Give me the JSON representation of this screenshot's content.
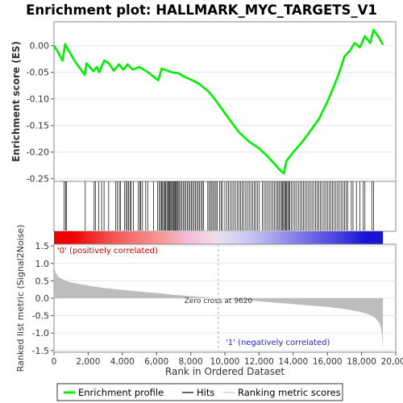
{
  "chart_data": {
    "type": "line",
    "title": "Enrichment plot: HALLMARK_MYC_TARGETS_V1",
    "xlabel": "Rank in Ordered Dataset",
    "top_panel": {
      "ylabel": "Enrichment score (ES)",
      "ylim": [
        -0.255,
        0.045
      ],
      "yticks": [
        0.0,
        -0.05,
        -0.1,
        -0.15,
        -0.2,
        -0.25
      ],
      "ytick_labels": [
        "0.00",
        "-0.05",
        "-0.10",
        "-0.15",
        "-0.20",
        "-0.25"
      ],
      "series_name": "Enrichment profile",
      "color": "#00ee00",
      "points": [
        [
          0,
          0.0
        ],
        [
          250,
          -0.013
        ],
        [
          500,
          -0.028
        ],
        [
          650,
          0.003
        ],
        [
          800,
          -0.006
        ],
        [
          1200,
          -0.028
        ],
        [
          1800,
          -0.055
        ],
        [
          1900,
          -0.033
        ],
        [
          2300,
          -0.048
        ],
        [
          2500,
          -0.04
        ],
        [
          2650,
          -0.05
        ],
        [
          2800,
          -0.038
        ],
        [
          2950,
          -0.028
        ],
        [
          3200,
          -0.033
        ],
        [
          3500,
          -0.047
        ],
        [
          3800,
          -0.035
        ],
        [
          4050,
          -0.045
        ],
        [
          4300,
          -0.035
        ],
        [
          4600,
          -0.045
        ],
        [
          5000,
          -0.04
        ],
        [
          5500,
          -0.05
        ],
        [
          6100,
          -0.065
        ],
        [
          6300,
          -0.043
        ],
        [
          6900,
          -0.05
        ],
        [
          7300,
          -0.052
        ],
        [
          7600,
          -0.058
        ],
        [
          8100,
          -0.065
        ],
        [
          8500,
          -0.072
        ],
        [
          9000,
          -0.085
        ],
        [
          9400,
          -0.1
        ],
        [
          9800,
          -0.118
        ],
        [
          10300,
          -0.14
        ],
        [
          10800,
          -0.162
        ],
        [
          11400,
          -0.18
        ],
        [
          12000,
          -0.193
        ],
        [
          12400,
          -0.205
        ],
        [
          12900,
          -0.222
        ],
        [
          13200,
          -0.233
        ],
        [
          13450,
          -0.24
        ],
        [
          13600,
          -0.217
        ],
        [
          14000,
          -0.2
        ],
        [
          14500,
          -0.182
        ],
        [
          15000,
          -0.16
        ],
        [
          15500,
          -0.138
        ],
        [
          16000,
          -0.105
        ],
        [
          16400,
          -0.075
        ],
        [
          16700,
          -0.05
        ],
        [
          17000,
          -0.02
        ],
        [
          17300,
          -0.01
        ],
        [
          17600,
          0.005
        ],
        [
          17900,
          -0.003
        ],
        [
          18200,
          0.018
        ],
        [
          18500,
          0.005
        ],
        [
          18700,
          0.03
        ],
        [
          19000,
          0.016
        ],
        [
          19250,
          0.002
        ]
      ]
    },
    "hits": [
      590,
      680,
      720,
      1830,
      2350,
      2420,
      2610,
      2790,
      2930,
      3200,
      3620,
      3710,
      3820,
      3890,
      4120,
      4210,
      4290,
      4360,
      4450,
      4520,
      4640,
      4920,
      5020,
      5080,
      5180,
      5370,
      5480,
      5820,
      6070,
      6160,
      6230,
      6300,
      6360,
      6420,
      6480,
      6540,
      6610,
      6660,
      6720,
      6770,
      6830,
      6880,
      6940,
      6990,
      7040,
      7100,
      7150,
      7210,
      7260,
      7320,
      7400,
      7480,
      7560,
      7640,
      7720,
      7800,
      7880,
      7960,
      8040,
      8120,
      8200,
      8280,
      8360,
      8440,
      8520,
      8600,
      8680,
      8760,
      9000,
      9080,
      9160,
      9240,
      9320,
      9400,
      9480,
      9560,
      9700,
      9780,
      9860,
      10000,
      10120,
      10220,
      10320,
      10420,
      10520,
      10620,
      10720,
      10820,
      10920,
      11020,
      11120,
      11220,
      11320,
      11420,
      11520,
      11620,
      11720,
      11820,
      11920,
      12020,
      12200,
      12300,
      12400,
      12500,
      12600,
      12700,
      12800,
      12900,
      13000,
      13080,
      13160,
      13240,
      13320,
      13380,
      13440,
      13500,
      13560,
      13620,
      13680,
      13740,
      13800,
      13900,
      14000,
      14100,
      14200,
      14300,
      14400,
      14500,
      14600,
      14700,
      14800,
      14900,
      15000,
      15100,
      15200,
      15300,
      15400,
      15500,
      15600,
      15700,
      15800,
      15900,
      16000,
      16100,
      16200,
      16300,
      16400,
      16500,
      16600,
      16700,
      16800,
      16900,
      17000,
      17100,
      17200,
      17400,
      17500,
      17700,
      17900,
      18100,
      18200,
      18600,
      18700
    ],
    "bottom_panel": {
      "ylabel": "Ranked list metric (Signal2Noise)",
      "ylim": [
        -1.55,
        1.55
      ],
      "yticks": [
        1.5,
        1.0,
        0.5,
        0.0,
        -0.5,
        -1.0,
        -1.5
      ],
      "ytick_labels": [
        "1.5",
        "1.0",
        "0.5",
        "0.0",
        "-0.5",
        "-1.0",
        "-1.5"
      ],
      "metric_points": [
        [
          0,
          0.95
        ],
        [
          100,
          0.72
        ],
        [
          300,
          0.6
        ],
        [
          600,
          0.52
        ],
        [
          1000,
          0.45
        ],
        [
          2000,
          0.36
        ],
        [
          3000,
          0.29
        ],
        [
          4000,
          0.24
        ],
        [
          5000,
          0.19
        ],
        [
          6000,
          0.15
        ],
        [
          7000,
          0.1
        ],
        [
          8000,
          0.06
        ],
        [
          9000,
          0.02
        ],
        [
          9620,
          0.0
        ],
        [
          10500,
          -0.03
        ],
        [
          12000,
          -0.09
        ],
        [
          13000,
          -0.13
        ],
        [
          14000,
          -0.17
        ],
        [
          15000,
          -0.21
        ],
        [
          16000,
          -0.25
        ],
        [
          17000,
          -0.31
        ],
        [
          17800,
          -0.38
        ],
        [
          18400,
          -0.46
        ],
        [
          18800,
          -0.56
        ],
        [
          19050,
          -0.72
        ],
        [
          19200,
          -1.0
        ],
        [
          19250,
          -1.45
        ]
      ],
      "zero_cross_label": "Zero cross at 9620",
      "zero_cross": 9620,
      "pos_label": "'0' (positively correlated)",
      "neg_label": "'1' (negatively correlated)"
    },
    "xlim": [
      0,
      20000
    ],
    "xticks": [
      0,
      2000,
      4000,
      6000,
      8000,
      10000,
      12000,
      14000,
      16000,
      18000,
      20000
    ],
    "xtick_labels": [
      "0",
      "2,000",
      "4,000",
      "6,000",
      "8,000",
      "10,000",
      "12,000",
      "14,000",
      "16,000",
      "18,000",
      "20,000"
    ],
    "n_genes": 19250,
    "legend": {
      "placement": "bottom",
      "entries": [
        "Enrichment profile",
        "Hits",
        "Ranking metric scores"
      ]
    }
  }
}
